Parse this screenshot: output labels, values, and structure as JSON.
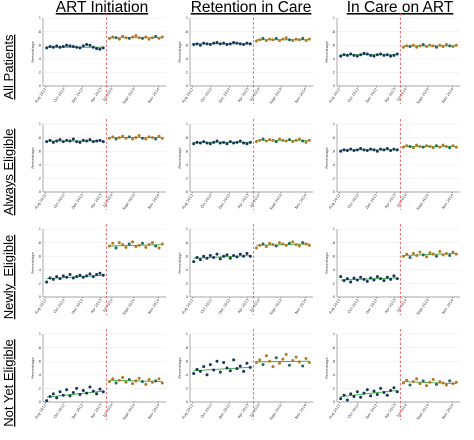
{
  "colors": {
    "pre": "#14365a",
    "post": "#b07a26",
    "post_alt": "#2a6a5a",
    "trend": "#38a838",
    "cutoff": "#e8404a"
  },
  "column_titles": [
    "ART Initiation",
    "Retention in Care",
    "In Care on ART"
  ],
  "row_titles": [
    "All Patients",
    "Always Eligible",
    "Newly  Eligible",
    "Not Yet Eligible"
  ],
  "y_axis_label": "Percentage",
  "y_ticks": [
    "0",
    ".2",
    ".4",
    ".6",
    ".8",
    "1"
  ],
  "x_ticks": [
    "Aug 2012",
    "Oct 2012",
    "Dec 2012",
    "Apr 2013",
    "Jul 2014",
    "Sept 2014",
    "Nov 2014"
  ],
  "chart_data": [
    {
      "type": "scatter",
      "title": "ART Initiation",
      "row": "All Patients",
      "ylim": [
        0,
        1
      ],
      "ylabel": "Percentage",
      "pre": [
        0.56,
        0.58,
        0.57,
        0.59,
        0.57,
        0.58,
        0.6,
        0.59,
        0.58,
        0.57,
        0.56,
        0.59,
        0.61,
        0.6,
        0.57,
        0.55,
        0.54,
        0.56
      ],
      "post": [
        0.7,
        0.72,
        0.71,
        0.69,
        0.73,
        0.71,
        0.7,
        0.72,
        0.74,
        0.71,
        0.7,
        0.72,
        0.69,
        0.71,
        0.73,
        0.7,
        0.72
      ],
      "trend_pre": [
        0.57,
        0.57
      ],
      "trend_post": [
        0.71,
        0.71
      ]
    },
    {
      "type": "scatter",
      "title": "Retention in Care",
      "row": "All Patients",
      "ylim": [
        0,
        1
      ],
      "ylabel": "Percentage",
      "pre": [
        0.61,
        0.62,
        0.6,
        0.63,
        0.62,
        0.61,
        0.63,
        0.64,
        0.62,
        0.63,
        0.61,
        0.62,
        0.64,
        0.63,
        0.62,
        0.61,
        0.63,
        0.62
      ],
      "post": [
        0.66,
        0.68,
        0.7,
        0.67,
        0.69,
        0.68,
        0.7,
        0.67,
        0.69,
        0.71,
        0.68,
        0.67,
        0.69,
        0.68,
        0.7,
        0.67,
        0.69
      ],
      "trend_pre": [
        0.62,
        0.62
      ],
      "trend_post": [
        0.68,
        0.68
      ]
    },
    {
      "type": "scatter",
      "title": "In Care on ART",
      "row": "All Patients",
      "ylim": [
        0,
        1
      ],
      "ylabel": "Percentage",
      "pre": [
        0.44,
        0.46,
        0.45,
        0.47,
        0.45,
        0.44,
        0.46,
        0.48,
        0.47,
        0.45,
        0.44,
        0.46,
        0.47,
        0.45,
        0.46,
        0.44,
        0.45,
        0.47
      ],
      "post": [
        0.57,
        0.59,
        0.58,
        0.6,
        0.57,
        0.59,
        0.61,
        0.58,
        0.6,
        0.59,
        0.57,
        0.6,
        0.58,
        0.61,
        0.59,
        0.58,
        0.6
      ],
      "trend_pre": [
        0.46,
        0.46
      ],
      "trend_post": [
        0.59,
        0.59
      ]
    },
    {
      "type": "scatter",
      "title": "ART Initiation",
      "row": "Always Eligible",
      "ylim": [
        0,
        1
      ],
      "ylabel": "Percentage",
      "pre": [
        0.74,
        0.76,
        0.73,
        0.75,
        0.77,
        0.74,
        0.76,
        0.75,
        0.78,
        0.74,
        0.73,
        0.76,
        0.75,
        0.77,
        0.74,
        0.75,
        0.76,
        0.74
      ],
      "post": [
        0.79,
        0.81,
        0.78,
        0.8,
        0.82,
        0.79,
        0.81,
        0.78,
        0.8,
        0.83,
        0.79,
        0.78,
        0.81,
        0.8,
        0.78,
        0.82,
        0.79
      ],
      "trend_pre": [
        0.75,
        0.75
      ],
      "trend_post": [
        0.8,
        0.8
      ]
    },
    {
      "type": "scatter",
      "title": "Retention in Care",
      "row": "Always Eligible",
      "ylim": [
        0,
        1
      ],
      "ylabel": "Percentage",
      "pre": [
        0.71,
        0.73,
        0.72,
        0.74,
        0.72,
        0.71,
        0.73,
        0.75,
        0.72,
        0.73,
        0.71,
        0.74,
        0.72,
        0.73,
        0.75,
        0.72,
        0.71,
        0.73
      ],
      "post": [
        0.74,
        0.76,
        0.78,
        0.75,
        0.77,
        0.76,
        0.74,
        0.78,
        0.76,
        0.75,
        0.77,
        0.74,
        0.76,
        0.78,
        0.75,
        0.73,
        0.76
      ],
      "trend_pre": [
        0.73,
        0.73
      ],
      "trend_post": [
        0.76,
        0.76
      ]
    },
    {
      "type": "scatter",
      "title": "In Care on ART",
      "row": "Always Eligible",
      "ylim": [
        0,
        1
      ],
      "ylabel": "Percentage",
      "pre": [
        0.6,
        0.62,
        0.61,
        0.63,
        0.61,
        0.62,
        0.64,
        0.62,
        0.61,
        0.63,
        0.62,
        0.6,
        0.63,
        0.62,
        0.64,
        0.61,
        0.63,
        0.62
      ],
      "post": [
        0.66,
        0.68,
        0.67,
        0.65,
        0.69,
        0.67,
        0.66,
        0.68,
        0.67,
        0.65,
        0.68,
        0.66,
        0.69,
        0.67,
        0.65,
        0.68,
        0.66
      ],
      "trend_pre": [
        0.62,
        0.62
      ],
      "trend_post": [
        0.67,
        0.67
      ]
    },
    {
      "type": "scatter",
      "title": "ART Initiation",
      "row": "Newly  Eligible",
      "ylim": [
        0,
        1
      ],
      "ylabel": "Percentage",
      "pre": [
        0.22,
        0.28,
        0.26,
        0.3,
        0.27,
        0.31,
        0.29,
        0.33,
        0.28,
        0.3,
        0.32,
        0.29,
        0.31,
        0.34,
        0.3,
        0.33,
        0.35,
        0.32
      ],
      "post": [
        0.75,
        0.79,
        0.72,
        0.8,
        0.77,
        0.73,
        0.78,
        0.81,
        0.74,
        0.76,
        0.79,
        0.73,
        0.77,
        0.8,
        0.75,
        0.72,
        0.78
      ],
      "trend_pre": [
        0.27,
        0.32
      ],
      "trend_post": [
        0.75,
        0.77
      ]
    },
    {
      "type": "scatter",
      "title": "Retention in Care",
      "row": "Newly  Eligible",
      "ylim": [
        0,
        1
      ],
      "ylabel": "Percentage",
      "pre": [
        0.52,
        0.58,
        0.55,
        0.6,
        0.57,
        0.61,
        0.58,
        0.63,
        0.56,
        0.6,
        0.62,
        0.57,
        0.61,
        0.59,
        0.63,
        0.6,
        0.64,
        0.6
      ],
      "post": [
        0.72,
        0.76,
        0.78,
        0.74,
        0.79,
        0.77,
        0.75,
        0.8,
        0.78,
        0.76,
        0.79,
        0.81,
        0.77,
        0.75,
        0.8,
        0.78,
        0.76
      ],
      "trend_pre": [
        0.57,
        0.61
      ],
      "trend_post": [
        0.76,
        0.78
      ]
    },
    {
      "type": "scatter",
      "title": "In Care on ART",
      "row": "Newly  Eligible",
      "ylim": [
        0,
        1
      ],
      "ylabel": "Percentage",
      "pre": [
        0.3,
        0.24,
        0.27,
        0.22,
        0.28,
        0.25,
        0.29,
        0.26,
        0.23,
        0.28,
        0.25,
        0.3,
        0.27,
        0.24,
        0.29,
        0.26,
        0.31,
        0.27
      ],
      "post": [
        0.6,
        0.63,
        0.58,
        0.64,
        0.61,
        0.66,
        0.62,
        0.59,
        0.65,
        0.63,
        0.6,
        0.67,
        0.62,
        0.64,
        0.61,
        0.66,
        0.63
      ],
      "trend_pre": [
        0.25,
        0.28
      ],
      "trend_post": [
        0.61,
        0.64
      ]
    },
    {
      "type": "scatter",
      "title": "ART Initiation",
      "row": "Not Yet Eligible",
      "ylim": [
        0,
        1
      ],
      "ylabel": "Percentage",
      "pre": [
        0.02,
        0.08,
        0.12,
        0.06,
        0.15,
        0.1,
        0.18,
        0.09,
        0.14,
        0.2,
        0.11,
        0.17,
        0.13,
        0.22,
        0.16,
        0.12,
        0.19,
        0.15
      ],
      "post": [
        0.3,
        0.34,
        0.28,
        0.32,
        0.36,
        0.29,
        0.33,
        0.27,
        0.31,
        0.35,
        0.3,
        0.26,
        0.33,
        0.29,
        0.31,
        0.34,
        0.28
      ],
      "trend_pre": [
        0.07,
        0.16
      ],
      "trend_post": [
        0.32,
        0.3
      ]
    },
    {
      "type": "scatter",
      "title": "Retention in Care",
      "row": "Not Yet Eligible",
      "ylim": [
        0,
        1
      ],
      "ylabel": "Percentage",
      "pre": [
        0.42,
        0.48,
        0.45,
        0.52,
        0.4,
        0.55,
        0.47,
        0.6,
        0.44,
        0.58,
        0.5,
        0.46,
        0.62,
        0.49,
        0.53,
        0.45,
        0.57,
        0.51
      ],
      "post": [
        0.58,
        0.62,
        0.55,
        0.68,
        0.6,
        0.52,
        0.65,
        0.57,
        0.63,
        0.7,
        0.54,
        0.61,
        0.66,
        0.59,
        0.53,
        0.64,
        0.58
      ],
      "trend_pre": [
        0.46,
        0.51
      ],
      "trend_post": [
        0.59,
        0.6
      ]
    },
    {
      "type": "scatter",
      "title": "In Care on ART",
      "row": "Not Yet Eligible",
      "ylim": [
        0,
        1
      ],
      "ylabel": "Percentage",
      "pre": [
        0.05,
        0.1,
        0.03,
        0.12,
        0.08,
        0.15,
        0.07,
        0.13,
        0.18,
        0.09,
        0.16,
        0.11,
        0.2,
        0.14,
        0.1,
        0.17,
        0.21,
        0.15
      ],
      "post": [
        0.28,
        0.32,
        0.25,
        0.3,
        0.34,
        0.27,
        0.31,
        0.24,
        0.29,
        0.33,
        0.26,
        0.3,
        0.28,
        0.25,
        0.31,
        0.27,
        0.29
      ],
      "trend_pre": [
        0.08,
        0.17
      ],
      "trend_post": [
        0.3,
        0.27
      ]
    }
  ]
}
